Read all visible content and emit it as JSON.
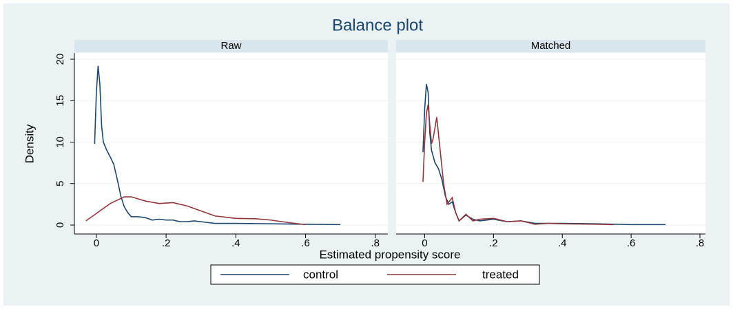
{
  "title": "Balance plot",
  "y_label": "Density",
  "x_label": "Estimated propensity score",
  "legend_position": "bottom",
  "chart_data": [
    {
      "type": "line",
      "title": "Raw",
      "xlim": [
        -0.063,
        0.836
      ],
      "ylim": [
        -1.08,
        20.75
      ],
      "xticks": [
        0,
        {
          "value": 0.2,
          "label": ".2"
        },
        {
          "value": 0.4,
          "label": ".4"
        },
        {
          "value": 0.6,
          "label": ".6"
        },
        {
          "value": 0.8,
          "label": ".8"
        }
      ],
      "yticks": [
        0,
        5,
        10,
        15,
        20
      ],
      "show_ytick_labels": true,
      "grid": true,
      "series": [
        {
          "name": "control",
          "color": "#1a476f",
          "x": [
            -0.005,
            0,
            0.005,
            0.01,
            0.015,
            0.02,
            0.03,
            0.04,
            0.05,
            0.06,
            0.07,
            0.08,
            0.09,
            0.1,
            0.12,
            0.14,
            0.16,
            0.18,
            0.2,
            0.22,
            0.24,
            0.26,
            0.28,
            0.3,
            0.32,
            0.34,
            0.4,
            0.5,
            0.6,
            0.7
          ],
          "values": [
            9.8,
            16,
            19.2,
            17,
            12,
            10,
            9,
            8.2,
            7.3,
            5.5,
            3.5,
            2.2,
            1.5,
            1.0,
            1.0,
            0.9,
            0.6,
            0.7,
            0.6,
            0.6,
            0.4,
            0.4,
            0.5,
            0.4,
            0.3,
            0.2,
            0.2,
            0.15,
            0.1,
            0.05
          ]
        },
        {
          "name": "treated",
          "color": "#90353b",
          "x": [
            -0.03,
            0,
            0.04,
            0.08,
            0.1,
            0.14,
            0.18,
            0.22,
            0.26,
            0.3,
            0.34,
            0.4,
            0.46,
            0.5,
            0.55,
            0.6
          ],
          "values": [
            0.5,
            1.4,
            2.6,
            3.4,
            3.4,
            2.9,
            2.6,
            2.7,
            2.3,
            1.7,
            1.1,
            0.8,
            0.75,
            0.6,
            0.3,
            0.05
          ]
        }
      ]
    },
    {
      "type": "line",
      "title": "Matched",
      "xlim": [
        -0.083,
        0.816
      ],
      "ylim": [
        -1.08,
        20.75
      ],
      "xticks": [
        0,
        {
          "value": 0.2,
          "label": ".2"
        },
        {
          "value": 0.4,
          "label": ".4"
        },
        {
          "value": 0.6,
          "label": ".6"
        },
        {
          "value": 0.8,
          "label": ".8"
        }
      ],
      "yticks": [
        0,
        5,
        10,
        15,
        20
      ],
      "show_ytick_labels": false,
      "grid": true,
      "series": [
        {
          "name": "control",
          "color": "#1a476f",
          "x": [
            -0.005,
            0,
            0.005,
            0.01,
            0.015,
            0.02,
            0.03,
            0.04,
            0.05,
            0.06,
            0.07,
            0.08,
            0.09,
            0.1,
            0.12,
            0.14,
            0.16,
            0.2,
            0.24,
            0.28,
            0.32,
            0.4,
            0.5,
            0.6,
            0.7
          ],
          "values": [
            8.8,
            14,
            17,
            16,
            11,
            9,
            7.5,
            6.8,
            5.5,
            3.5,
            2.5,
            2.8,
            1.5,
            0.5,
            1.2,
            0.7,
            0.5,
            0.7,
            0.4,
            0.5,
            0.2,
            0.2,
            0.15,
            0.05,
            0.05
          ]
        },
        {
          "name": "treated",
          "color": "#90353b",
          "x": [
            -0.005,
            0,
            0.005,
            0.01,
            0.015,
            0.02,
            0.025,
            0.035,
            0.045,
            0.055,
            0.065,
            0.08,
            0.09,
            0.1,
            0.12,
            0.14,
            0.16,
            0.2,
            0.24,
            0.28,
            0.32,
            0.36,
            0.4,
            0.5,
            0.55
          ],
          "values": [
            5.2,
            10,
            13.5,
            14.5,
            12,
            9.8,
            10.5,
            13,
            9,
            5,
            2.5,
            3.3,
            1.5,
            0.5,
            1.3,
            0.5,
            0.7,
            0.8,
            0.4,
            0.5,
            0.1,
            0.2,
            0.15,
            0.1,
            0.05
          ]
        }
      ]
    }
  ]
}
